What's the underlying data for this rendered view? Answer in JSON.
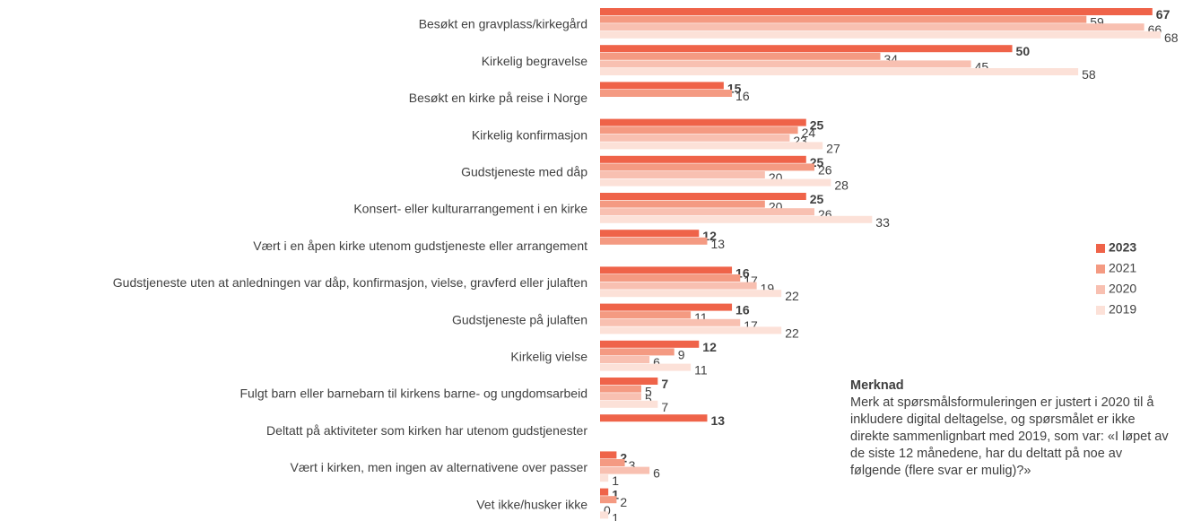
{
  "chart_data": {
    "type": "hbar",
    "categories": [
      "Besøkt en gravplass/kirkegård",
      "Kirkelig begravelse",
      "Besøkt en kirke på reise i Norge",
      "Kirkelig konfirmasjon",
      "Gudstjeneste med dåp",
      "Konsert- eller kulturarrangement i en kirke",
      "Vært i en åpen kirke utenom gudstjeneste eller arrangement",
      "Gudstjeneste uten at anledningen var dåp, konfirmasjon, vielse, gravferd eller julaften",
      "Gudstjeneste på julaften",
      "Kirkelig vielse",
      "Fulgt barn eller barnebarn til kirkens barne- og ungdomsarbeid",
      "Deltatt på aktiviteter som kirken har utenom gudstjenester",
      "Vært i kirken, men ingen av alternativene over passer",
      "Vet ikke/husker ikke"
    ],
    "series": [
      {
        "name": "2023",
        "color": "#ef6349",
        "values": [
          67,
          50,
          15,
          25,
          25,
          25,
          12,
          16,
          16,
          12,
          7,
          13,
          2,
          1
        ]
      },
      {
        "name": "2021",
        "color": "#f49a82",
        "values": [
          59,
          34,
          16,
          24,
          26,
          20,
          13,
          17,
          11,
          9,
          5,
          null,
          3,
          2
        ]
      },
      {
        "name": "2020",
        "color": "#f8c0b1",
        "values": [
          66,
          45,
          null,
          23,
          20,
          26,
          null,
          19,
          17,
          6,
          5,
          null,
          6,
          0
        ]
      },
      {
        "name": "2019",
        "color": "#fce1d8",
        "values": [
          68,
          58,
          null,
          27,
          28,
          33,
          null,
          22,
          22,
          11,
          7,
          null,
          1,
          1
        ]
      }
    ],
    "note": {
      "title": "Merknad",
      "text": "Merk at spørsmålsformuleringen er justert i 2020 til å inkludere digital deltagelse, og spørsmålet er ikke direkte sammenlignbart med 2019, som var: «I løpet av de siste 12 månedene, har du deltatt på noe av følgende (flere svar er mulig)?»"
    }
  }
}
